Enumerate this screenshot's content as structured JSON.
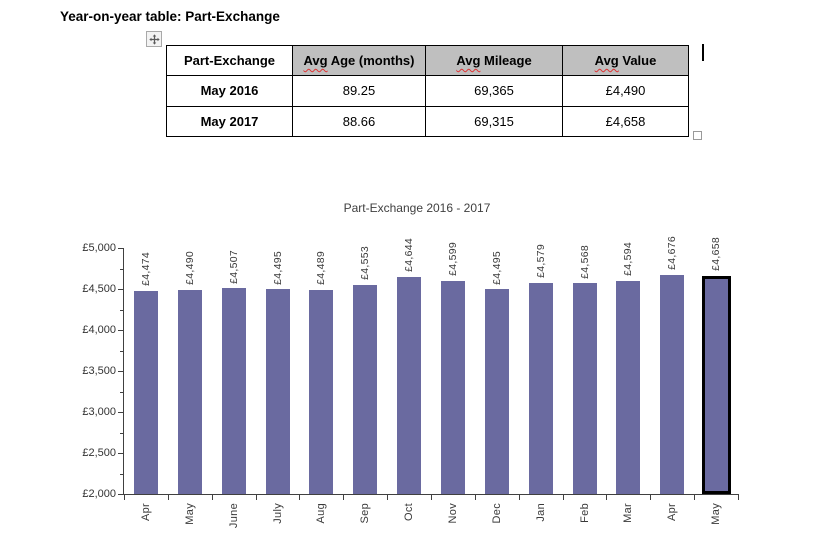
{
  "page": {
    "title": "Year-on-year table: Part-Exchange"
  },
  "table": {
    "header_bg": "#BFBFBF",
    "headers": [
      {
        "text": "Part-Exchange"
      },
      {
        "misspelled": "Avg",
        "rest": " Age (months)"
      },
      {
        "misspelled": "Avg",
        "rest": " Mileage"
      },
      {
        "misspelled": "Avg",
        "rest": " Value"
      }
    ],
    "rows": [
      {
        "label": "May 2016",
        "cells": [
          "89.25",
          "69,365",
          "£4,490"
        ]
      },
      {
        "label": "May 2017",
        "cells": [
          "88.66",
          "69,315",
          "£4,658"
        ]
      }
    ]
  },
  "chart_data": {
    "type": "bar",
    "title": "Part-Exchange 2016 - 2017",
    "categories": [
      "Apr",
      "May",
      "June",
      "July",
      "Aug",
      "Sep",
      "Oct",
      "Nov",
      "Dec",
      "Jan",
      "Feb",
      "Mar",
      "Apr",
      "May"
    ],
    "values": [
      4474,
      4490,
      4507,
      4495,
      4489,
      4553,
      4644,
      4599,
      4495,
      4579,
      4568,
      4594,
      4676,
      4658
    ],
    "value_labels": [
      "£4,474",
      "£4,490",
      "£4,507",
      "£4,495",
      "£4,489",
      "£4,553",
      "£4,644",
      "£4,599",
      "£4,495",
      "£4,579",
      "£4,568",
      "£4,594",
      "£4,676",
      "£4,658"
    ],
    "xlabel": "",
    "ylabel": "",
    "ylim": [
      2000,
      5000
    ],
    "y_major_step": 500,
    "y_minor_step": 250,
    "y_tick_labels": [
      "£2,000",
      "£2,500",
      "£3,000",
      "£3,500",
      "£4,000",
      "£4,500",
      "£5,000"
    ],
    "grid": false,
    "legend": false,
    "bar_color": "#6A6AA0",
    "highlight_index": 13,
    "highlight_border_color": "#000000"
  }
}
